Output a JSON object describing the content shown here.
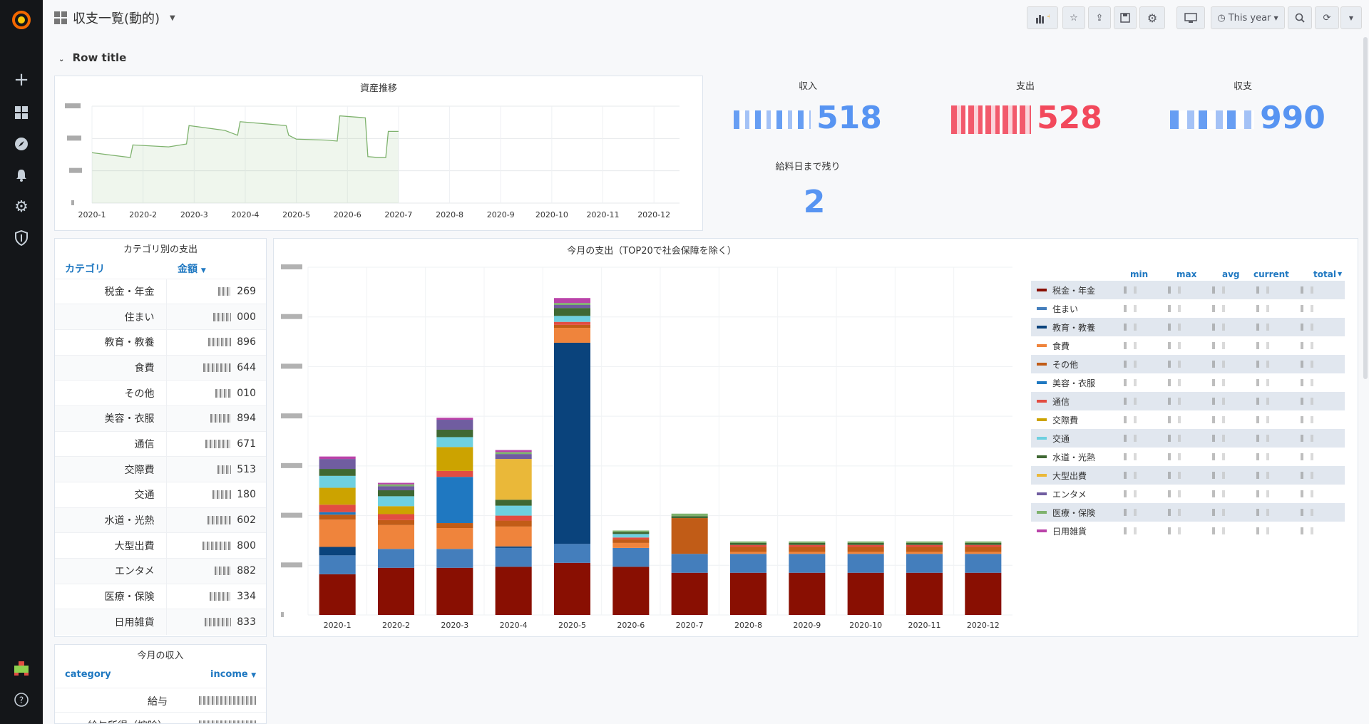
{
  "dashboard": {
    "title": "収支一覧(動的)",
    "row_title": "Row title"
  },
  "toolbar": {
    "time_range": "This year"
  },
  "asset_panel": {
    "title": "資産推移"
  },
  "stats": {
    "income": {
      "title": "収入",
      "value": "518",
      "color": "#5794f2"
    },
    "expense": {
      "title": "支出",
      "value": "528",
      "color": "#f2495c"
    },
    "balance": {
      "title": "収支",
      "value": "990",
      "color": "#5794f2"
    },
    "payday": {
      "title": "給料日まで残り",
      "value": "2",
      "color": "#5794f2"
    }
  },
  "category_panel": {
    "title": "カテゴリ別の支出",
    "col1": "カテゴリ",
    "col2": "金額",
    "rows": [
      {
        "name": "税金・年金",
        "amount": "269"
      },
      {
        "name": "住まい",
        "amount": "000"
      },
      {
        "name": "教育・教養",
        "amount": "896"
      },
      {
        "name": "食費",
        "amount": "644"
      },
      {
        "name": "その他",
        "amount": "010"
      },
      {
        "name": "美容・衣服",
        "amount": "894"
      },
      {
        "name": "通信",
        "amount": "671"
      },
      {
        "name": "交際費",
        "amount": "513"
      },
      {
        "name": "交通",
        "amount": "180"
      },
      {
        "name": "水道・光熱",
        "amount": "602"
      },
      {
        "name": "大型出費",
        "amount": "800"
      },
      {
        "name": "エンタメ",
        "amount": "882"
      },
      {
        "name": "医療・保険",
        "amount": "334"
      },
      {
        "name": "日用雑貨",
        "amount": "833"
      }
    ]
  },
  "income_panel": {
    "title": "今月の収入",
    "col1": "category",
    "col2": "income",
    "rows": [
      {
        "name": "給与"
      },
      {
        "name": "給与所得（控除）"
      }
    ]
  },
  "monthly_panel": {
    "title": "今月の支出（TOP20で社会保障を除く）"
  },
  "legend": {
    "headers": [
      "min",
      "max",
      "avg",
      "current",
      "total"
    ],
    "items": [
      {
        "name": "税金・年金",
        "color": "#890f02"
      },
      {
        "name": "住まい",
        "color": "#447ebc"
      },
      {
        "name": "教育・教養",
        "color": "#0a437c"
      },
      {
        "name": "食費",
        "color": "#ef843c"
      },
      {
        "name": "その他",
        "color": "#c15c17"
      },
      {
        "name": "美容・衣服",
        "color": "#1f78c1"
      },
      {
        "name": "通信",
        "color": "#e24d42"
      },
      {
        "name": "交際費",
        "color": "#cca300"
      },
      {
        "name": "交通",
        "color": "#6ed0e0"
      },
      {
        "name": "水道・光熱",
        "color": "#3f6833"
      },
      {
        "name": "大型出費",
        "color": "#eab839"
      },
      {
        "name": "エンタメ",
        "color": "#705da0"
      },
      {
        "name": "医療・保険",
        "color": "#7eb26d"
      },
      {
        "name": "日用雑貨",
        "color": "#ba43a9"
      }
    ]
  },
  "chart_data": [
    {
      "type": "area",
      "title": "資産推移",
      "x": [
        "2020-1",
        "2020-2",
        "2020-3",
        "2020-4",
        "2020-5",
        "2020-6",
        "2020-7",
        "2020-8",
        "2020-9",
        "2020-10",
        "2020-11",
        "2020-12"
      ],
      "series_points": [
        [
          0,
          0.52
        ],
        [
          0.3,
          0.5
        ],
        [
          0.75,
          0.47
        ],
        [
          0.8,
          0.6
        ],
        [
          1.5,
          0.58
        ],
        [
          1.85,
          0.61
        ],
        [
          1.9,
          0.8
        ],
        [
          2.6,
          0.75
        ],
        [
          2.85,
          0.7
        ],
        [
          2.9,
          0.84
        ],
        [
          3.8,
          0.8
        ],
        [
          3.85,
          0.7
        ],
        [
          4.0,
          0.66
        ],
        [
          4.6,
          0.65
        ],
        [
          4.8,
          0.64
        ],
        [
          4.85,
          0.9
        ],
        [
          5.35,
          0.88
        ],
        [
          5.4,
          0.48
        ],
        [
          5.6,
          0.47
        ],
        [
          5.75,
          0.47
        ],
        [
          5.8,
          0.74
        ],
        [
          6.0,
          0.74
        ]
      ],
      "grid": true
    },
    {
      "type": "bar",
      "stacked": true,
      "title": "今月の支出（TOP20で社会保障を除く）",
      "categories": [
        "2020-1",
        "2020-2",
        "2020-3",
        "2020-4",
        "2020-5",
        "2020-6",
        "2020-7",
        "2020-8",
        "2020-9",
        "2020-10",
        "2020-11",
        "2020-12"
      ],
      "ylim": [
        0,
        7.0
      ],
      "series": [
        {
          "name": "税金・年金",
          "values": [
            0.82,
            0.95,
            0.95,
            0.97,
            1.05,
            0.97,
            0.85,
            0.85,
            0.85,
            0.85,
            0.85,
            0.85
          ]
        },
        {
          "name": "住まい",
          "values": [
            0.38,
            0.38,
            0.38,
            0.38,
            0.38,
            0.38,
            0.38,
            0.38,
            0.38,
            0.38,
            0.38,
            0.38
          ]
        },
        {
          "name": "教育・教養",
          "values": [
            0.17,
            0.0,
            0.0,
            0.03,
            4.05,
            0.0,
            0.0,
            0.0,
            0.0,
            0.0,
            0.0,
            0.0
          ]
        },
        {
          "name": "食費",
          "values": [
            0.55,
            0.48,
            0.42,
            0.4,
            0.3,
            0.1,
            0.0,
            0.04,
            0.04,
            0.04,
            0.04,
            0.04
          ]
        },
        {
          "name": "その他",
          "values": [
            0.1,
            0.1,
            0.1,
            0.12,
            0.06,
            0.07,
            0.72,
            0.1,
            0.1,
            0.1,
            0.1,
            0.1
          ]
        },
        {
          "name": "美容・衣服",
          "values": [
            0.05,
            0.0,
            0.93,
            0.0,
            0.0,
            0.0,
            0.0,
            0.0,
            0.0,
            0.0,
            0.0,
            0.0
          ]
        },
        {
          "name": "通信",
          "values": [
            0.15,
            0.12,
            0.12,
            0.1,
            0.06,
            0.04,
            0.0,
            0.04,
            0.04,
            0.04,
            0.04,
            0.04
          ]
        },
        {
          "name": "交際費",
          "values": [
            0.34,
            0.16,
            0.48,
            0.0,
            0.0,
            0.0,
            0.0,
            0.0,
            0.0,
            0.0,
            0.0,
            0.0
          ]
        },
        {
          "name": "交通",
          "values": [
            0.24,
            0.2,
            0.2,
            0.2,
            0.12,
            0.07,
            0.0,
            0.0,
            0.0,
            0.0,
            0.0,
            0.0
          ]
        },
        {
          "name": "水道・光熱",
          "values": [
            0.14,
            0.12,
            0.15,
            0.12,
            0.16,
            0.04,
            0.04,
            0.04,
            0.04,
            0.04,
            0.04,
            0.04
          ]
        },
        {
          "name": "大型出費",
          "values": [
            0.0,
            0.0,
            0.0,
            0.82,
            0.0,
            0.0,
            0.0,
            0.0,
            0.0,
            0.0,
            0.0,
            0.0
          ]
        },
        {
          "name": "エンタメ",
          "values": [
            0.2,
            0.08,
            0.2,
            0.1,
            0.06,
            0.0,
            0.0,
            0.0,
            0.0,
            0.0,
            0.0,
            0.0
          ]
        },
        {
          "name": "医療・保険",
          "values": [
            0.0,
            0.04,
            0.0,
            0.04,
            0.04,
            0.03,
            0.05,
            0.03,
            0.03,
            0.03,
            0.03,
            0.03
          ]
        },
        {
          "name": "日用雑貨",
          "values": [
            0.05,
            0.03,
            0.04,
            0.04,
            0.1,
            0.0,
            0.0,
            0.0,
            0.0,
            0.0,
            0.0,
            0.0
          ]
        }
      ],
      "grid": true
    }
  ]
}
